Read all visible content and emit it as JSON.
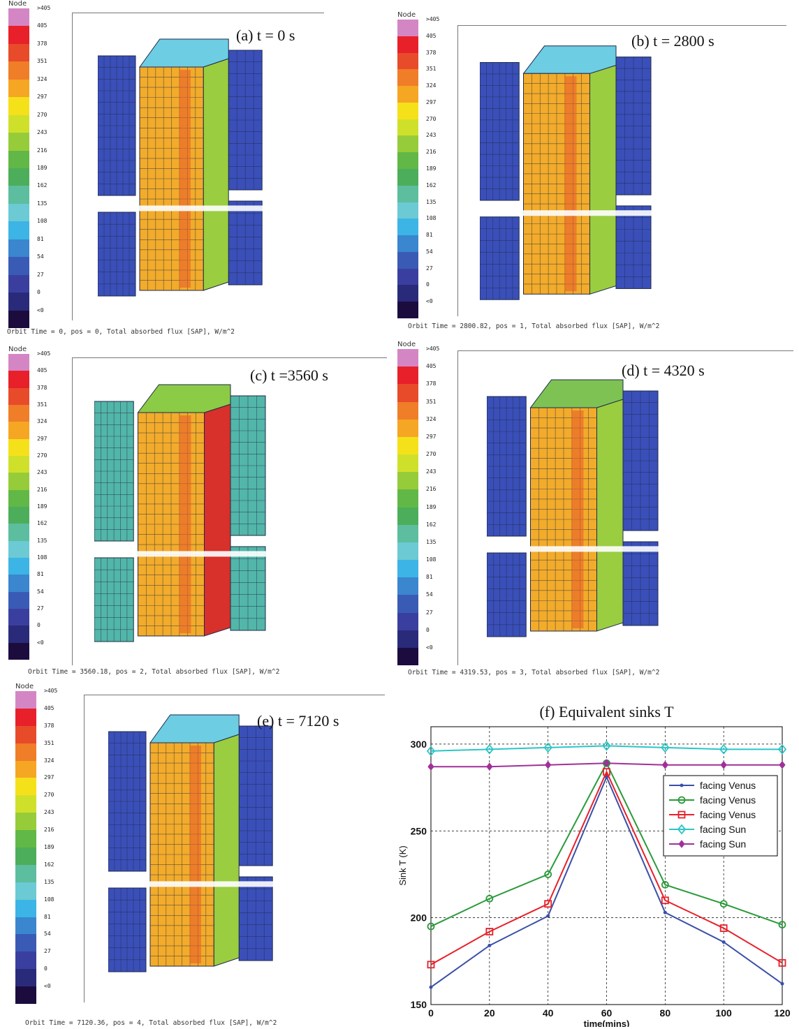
{
  "legend": {
    "header": "Node",
    "labels": [
      ">405",
      "405",
      "378",
      "351",
      "324",
      "297",
      "270",
      "243",
      "216",
      "189",
      "162",
      "135",
      "108",
      "81",
      "54",
      "27",
      "0",
      "<0"
    ],
    "colors": [
      "#d486c4",
      "#e8202a",
      "#e84b2a",
      "#f07d28",
      "#f5a623",
      "#f5e11a",
      "#cfe02b",
      "#96cc39",
      "#62b846",
      "#4cae5a",
      "#5cbe9e",
      "#6bcad3",
      "#3cb4e6",
      "#3a86cf",
      "#3a5bb5",
      "#3a3f9f",
      "#2a2a7a",
      "#1c0c3e"
    ]
  },
  "panels": [
    {
      "title": "(a)  t = 0 s",
      "caption": "Orbit Time = 0, pos = 0, Total absorbed flux [SAP], W/m^2"
    },
    {
      "title": "(b)  t = 2800 s",
      "caption": "Orbit Time = 2800.82, pos = 1, Total absorbed flux [SAP], W/m^2"
    },
    {
      "title": "(c) t =3560 s",
      "caption": "Orbit Time = 3560.18, pos = 2, Total absorbed flux [SAP], W/m^2"
    },
    {
      "title": "(d)  t = 4320 s",
      "caption": "Orbit Time = 4319.53, pos = 3, Total absorbed flux [SAP], W/m^2"
    },
    {
      "title": "(e) t = 7120 s",
      "caption": "Orbit Time = 7120.36, pos = 4, Total absorbed flux [SAP], W/m^2"
    }
  ],
  "chart_data": {
    "type": "line",
    "title": "(f) Equivalent sinks T",
    "xlabel": "time(mins)",
    "ylabel": "Sink T (K)",
    "x": [
      0,
      20,
      40,
      60,
      80,
      100,
      120
    ],
    "xlim": [
      0,
      120
    ],
    "ylim": [
      150,
      310
    ],
    "xticks": [
      0,
      20,
      40,
      60,
      80,
      100,
      120
    ],
    "yticks": [
      150,
      200,
      250,
      300
    ],
    "grid": true,
    "legend_position": "right",
    "series": [
      {
        "name": "facing Venus",
        "color": "#3a4fa8",
        "marker": "dot",
        "values": [
          160,
          184,
          201,
          281,
          203,
          186,
          162
        ]
      },
      {
        "name": "facing Venus",
        "color": "#2a9a3a",
        "marker": "circle",
        "values": [
          195,
          211,
          225,
          289,
          219,
          208,
          196
        ]
      },
      {
        "name": "facing Venus",
        "color": "#e8202a",
        "marker": "square",
        "values": [
          173,
          192,
          208,
          284,
          210,
          194,
          174
        ]
      },
      {
        "name": "facing Sun",
        "color": "#2bc6c6",
        "marker": "diamond",
        "values": [
          296,
          297,
          298,
          299,
          298,
          297,
          297
        ]
      },
      {
        "name": "facing Sun",
        "color": "#a0309a",
        "marker": "plus-diamond",
        "values": [
          287,
          287,
          288,
          289,
          288,
          288,
          288
        ]
      }
    ]
  }
}
